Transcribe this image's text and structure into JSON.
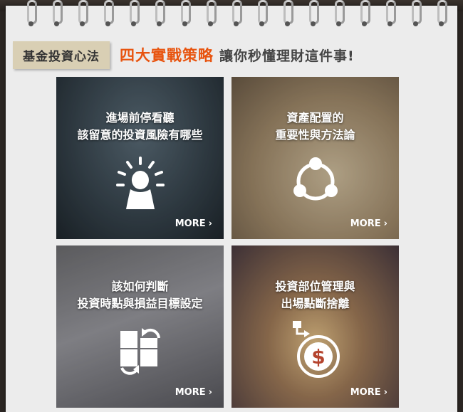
{
  "header": {
    "tag": "基金投資心法",
    "highlight": "四大實戰策略",
    "subtitle": "讓你秒懂理財這件事!"
  },
  "tiles": [
    {
      "line1": "進場前停看聽",
      "line2": "該留意的投資風險有哪些",
      "more": "MORE",
      "icon": "person-idea-icon"
    },
    {
      "line1": "資產配置的",
      "line2": "重要性與方法論",
      "more": "MORE",
      "icon": "allocation-cycle-icon"
    },
    {
      "line1": "該如何判斷",
      "line2": "投資時點與損益目標設定",
      "more": "MORE",
      "icon": "grid-arrows-icon"
    },
    {
      "line1": "投資部位管理與",
      "line2": "出場點斷捨離",
      "more": "MORE",
      "icon": "dollar-coin-icon"
    }
  ]
}
